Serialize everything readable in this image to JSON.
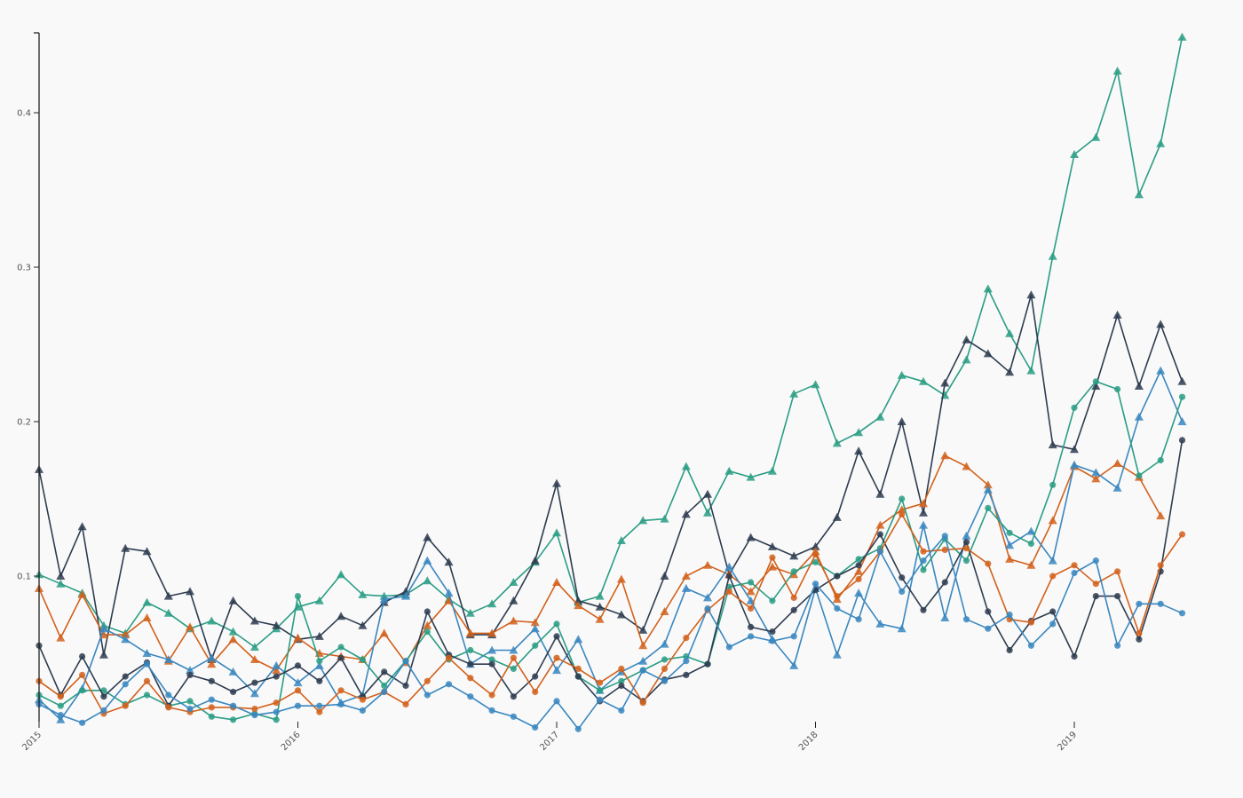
{
  "chart_data": {
    "type": "line",
    "title": "",
    "xlabel": "",
    "ylabel": "",
    "x_start": "2015-01",
    "x_ticks": [
      "2015",
      "2016",
      "2017",
      "2018",
      "2019"
    ],
    "y_ticks": [
      "0.1",
      "0.2",
      "0.3",
      "0.4"
    ],
    "ylim": [
      0,
      0.45
    ],
    "grid": false,
    "legend": "none",
    "series": [
      {
        "color": "#2a9d84",
        "marker": "triangle",
        "values": [
          0.101,
          0.095,
          0.089,
          0.068,
          0.063,
          0.083,
          0.076,
          0.066,
          0.071,
          0.064,
          0.054,
          0.066,
          0.08,
          0.084,
          0.101,
          0.088,
          0.087,
          0.088,
          0.097,
          0.085,
          0.076,
          0.082,
          0.096,
          0.109,
          0.128,
          0.083,
          0.087,
          0.123,
          0.136,
          0.137,
          0.171,
          0.141,
          0.168,
          0.164,
          0.168,
          0.218,
          0.224,
          0.186,
          0.193,
          0.203,
          0.23,
          0.226,
          0.217,
          0.24,
          0.286,
          0.257,
          0.233,
          0.307,
          0.373,
          0.384,
          0.427,
          0.347,
          0.38,
          0.449
        ]
      },
      {
        "color": "#2e3c50",
        "marker": "triangle",
        "values": [
          0.169,
          0.1,
          0.132,
          0.049,
          0.118,
          0.116,
          0.087,
          0.09,
          0.046,
          0.084,
          0.071,
          0.068,
          0.059,
          0.061,
          0.074,
          0.068,
          0.083,
          0.09,
          0.125,
          0.109,
          0.062,
          0.062,
          0.084,
          0.11,
          0.16,
          0.084,
          0.08,
          0.075,
          0.065,
          0.1,
          0.14,
          0.153,
          0.101,
          0.125,
          0.119,
          0.113,
          0.119,
          0.138,
          0.181,
          0.153,
          0.2,
          0.141,
          0.225,
          0.253,
          0.244,
          0.232,
          0.282,
          0.185,
          0.182,
          0.223,
          0.269,
          0.223,
          0.263,
          0.226
        ]
      },
      {
        "color": "#d2611c",
        "marker": "triangle",
        "values": [
          0.092,
          0.06,
          0.088,
          0.062,
          0.062,
          0.073,
          0.045,
          0.067,
          0.043,
          0.059,
          0.046,
          0.039,
          0.06,
          0.05,
          0.048,
          0.046,
          0.063,
          0.044,
          0.068,
          0.084,
          0.063,
          0.063,
          0.071,
          0.07,
          0.096,
          0.081,
          0.072,
          0.098,
          0.055,
          0.077,
          0.1,
          0.107,
          0.101,
          0.09,
          0.106,
          0.101,
          0.116,
          0.085,
          0.103,
          0.133,
          0.143,
          0.147,
          0.178,
          0.171,
          0.159,
          0.111,
          0.107,
          0.136,
          0.171,
          0.163,
          0.173,
          0.164,
          0.139,
          null
        ]
      },
      {
        "color": "#3a87bf",
        "marker": "triangle",
        "values": [
          0.02,
          0.007,
          0.027,
          0.066,
          0.059,
          0.05,
          0.046,
          0.039,
          0.047,
          0.038,
          0.024,
          0.042,
          0.031,
          0.042,
          0.018,
          0.023,
          0.085,
          0.087,
          0.11,
          0.089,
          0.043,
          0.052,
          0.052,
          0.066,
          0.039,
          0.059,
          0.026,
          0.038,
          0.045,
          0.056,
          0.092,
          0.086,
          0.106,
          0.084,
          0.059,
          0.042,
          0.092,
          0.049,
          0.089,
          0.069,
          0.066,
          0.133,
          0.073,
          0.126,
          0.156,
          0.12,
          0.129,
          0.11,
          0.172,
          0.167,
          0.157,
          0.203,
          0.233,
          0.2
        ]
      },
      {
        "color": "#2a9d84",
        "marker": "circle",
        "values": [
          0.023,
          0.016,
          0.026,
          0.026,
          0.017,
          0.023,
          0.016,
          0.019,
          0.009,
          0.007,
          0.011,
          0.007,
          0.087,
          0.045,
          0.054,
          0.046,
          0.029,
          0.045,
          0.064,
          0.046,
          0.052,
          0.046,
          0.04,
          0.055,
          0.069,
          0.035,
          0.026,
          0.032,
          0.039,
          0.046,
          0.048,
          0.043,
          0.093,
          0.096,
          0.084,
          0.103,
          0.109,
          0.1,
          0.111,
          0.118,
          0.15,
          0.104,
          0.124,
          0.11,
          0.144,
          0.128,
          0.121,
          0.159,
          0.209,
          0.226,
          0.221,
          0.165,
          0.175,
          0.216
        ]
      },
      {
        "color": "#2e3c50",
        "marker": "circle",
        "values": [
          0.055,
          0.023,
          0.048,
          0.022,
          0.035,
          0.044,
          0.016,
          0.036,
          0.032,
          0.025,
          0.031,
          0.035,
          0.042,
          0.032,
          0.047,
          0.022,
          0.038,
          0.029,
          0.077,
          0.049,
          0.043,
          0.043,
          0.022,
          0.035,
          0.061,
          0.035,
          0.019,
          0.029,
          0.019,
          0.033,
          0.036,
          0.043,
          0.1,
          0.067,
          0.064,
          0.078,
          0.091,
          0.1,
          0.107,
          0.127,
          0.099,
          0.078,
          0.096,
          0.122,
          0.077,
          0.052,
          0.071,
          0.077,
          0.048,
          0.087,
          0.087,
          0.059,
          0.103,
          0.188
        ]
      },
      {
        "color": "#d2611c",
        "marker": "circle",
        "values": [
          0.032,
          0.022,
          0.036,
          0.011,
          0.016,
          0.032,
          0.015,
          0.012,
          0.015,
          0.015,
          0.014,
          0.018,
          0.026,
          0.012,
          0.026,
          0.02,
          0.025,
          0.017,
          0.032,
          0.047,
          0.034,
          0.023,
          0.047,
          0.025,
          0.047,
          0.04,
          0.031,
          0.04,
          0.018,
          0.04,
          0.06,
          0.078,
          0.09,
          0.079,
          0.112,
          0.086,
          0.114,
          0.087,
          0.098,
          0.116,
          0.14,
          0.116,
          0.117,
          0.118,
          0.108,
          0.072,
          0.07,
          0.1,
          0.107,
          0.095,
          0.103,
          0.063,
          0.107,
          0.127
        ]
      },
      {
        "color": "#3a87bf",
        "marker": "circle",
        "values": [
          0.017,
          0.01,
          0.005,
          0.013,
          0.03,
          0.043,
          0.023,
          0.014,
          0.02,
          0.016,
          0.01,
          0.012,
          0.016,
          0.016,
          0.017,
          0.013,
          0.025,
          0.045,
          0.023,
          0.03,
          0.022,
          0.013,
          0.009,
          0.002,
          0.019,
          0.001,
          0.02,
          0.013,
          0.039,
          0.032,
          0.045,
          0.079,
          0.054,
          0.061,
          0.058,
          0.061,
          0.095,
          0.079,
          0.072,
          0.116,
          0.09,
          0.11,
          0.126,
          0.072,
          0.066,
          0.075,
          0.055,
          0.069,
          0.102,
          0.11,
          0.055,
          0.082,
          0.082,
          0.076
        ]
      }
    ]
  }
}
